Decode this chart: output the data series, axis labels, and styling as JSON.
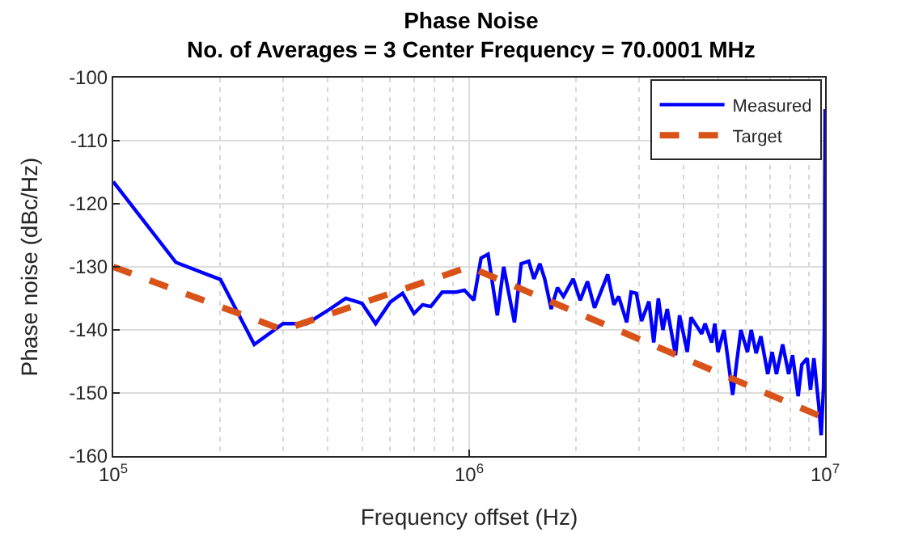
{
  "chart_data": {
    "type": "line",
    "title": "Phase Noise",
    "subtitle": "No. of Averages = 3 Center Frequency = 70.0001 MHz",
    "xlabel": "Frequency offset (Hz)",
    "ylabel": "Phase noise (dBc/Hz)",
    "log": "x",
    "xlim": [
      100000,
      10000000
    ],
    "ylim": [
      -160,
      -100
    ],
    "xticks": [
      {
        "value": 100000,
        "label": "10$^{5}$"
      },
      {
        "value": 1000000,
        "label": "10$^{6}$"
      },
      {
        "value": 10000000,
        "label": "10$^{7}$"
      }
    ],
    "yticks": [
      -160,
      -150,
      -140,
      -130,
      -120,
      -110,
      -100
    ],
    "grid": true,
    "legend": "top right",
    "series": [
      {
        "name": "Measured",
        "color": "#0000ff",
        "line_style": "solid",
        "x": [
          100000,
          150000,
          200000,
          249000,
          300000,
          350000,
          406000,
          450000,
          500000,
          546000,
          600000,
          650000,
          700000,
          740000,
          780000,
          840000,
          920000,
          970000,
          1030000,
          1080000,
          1130000,
          1200000,
          1250000,
          1340000,
          1400000,
          1470000,
          1520000,
          1580000,
          1630000,
          1700000,
          1770000,
          1840000,
          1960000,
          2050000,
          2150000,
          2250000,
          2450000,
          2550000,
          2630000,
          2770000,
          2850000,
          2950000,
          3050000,
          3200000,
          3300000,
          3400000,
          3500000,
          3600000,
          3800000,
          3900000,
          4100000,
          4200000,
          4500000,
          4600000,
          4800000,
          4900000,
          5000000,
          5200000,
          5500000,
          5650000,
          5800000,
          6050000,
          6200000,
          6400000,
          6600000,
          6900000,
          7100000,
          7300000,
          7600000,
          7900000,
          8100000,
          8400000,
          8600000,
          8900000,
          9100000,
          9300000,
          9600000,
          9750000,
          9900000,
          9950000,
          10000000
        ],
        "values": [
          -116.5,
          -129.3,
          -132,
          -142.3,
          -139,
          -139,
          -136.7,
          -135,
          -135.8,
          -139,
          -135.6,
          -134.2,
          -137.4,
          -136,
          -136.3,
          -134,
          -134,
          -133.7,
          -135.3,
          -128.6,
          -128,
          -137.7,
          -130,
          -138.8,
          -129.5,
          -129.1,
          -131.9,
          -129.5,
          -131.9,
          -136.7,
          -133.3,
          -134.7,
          -131.9,
          -135.3,
          -132.3,
          -136.5,
          -131.2,
          -136,
          -134.7,
          -138.8,
          -134,
          -134.2,
          -138.6,
          -135.5,
          -142,
          -135,
          -140,
          -136.7,
          -144,
          -137.7,
          -143.5,
          -138,
          -140.6,
          -139,
          -142,
          -139,
          -143.5,
          -140,
          -150.3,
          -144.9,
          -140,
          -143.5,
          -140,
          -143.7,
          -141,
          -147,
          -143.5,
          -147,
          -142.3,
          -147,
          -144,
          -150.5,
          -145.5,
          -144.5,
          -149.5,
          -144.5,
          -152,
          -156.7,
          -149,
          -140,
          -105
        ]
      },
      {
        "name": "Target",
        "color": "#d95319",
        "line_style": "dashed",
        "x": [
          100000,
          300000,
          1000000,
          10000000
        ],
        "values": [
          -130,
          -140,
          -130,
          -154
        ]
      }
    ]
  }
}
